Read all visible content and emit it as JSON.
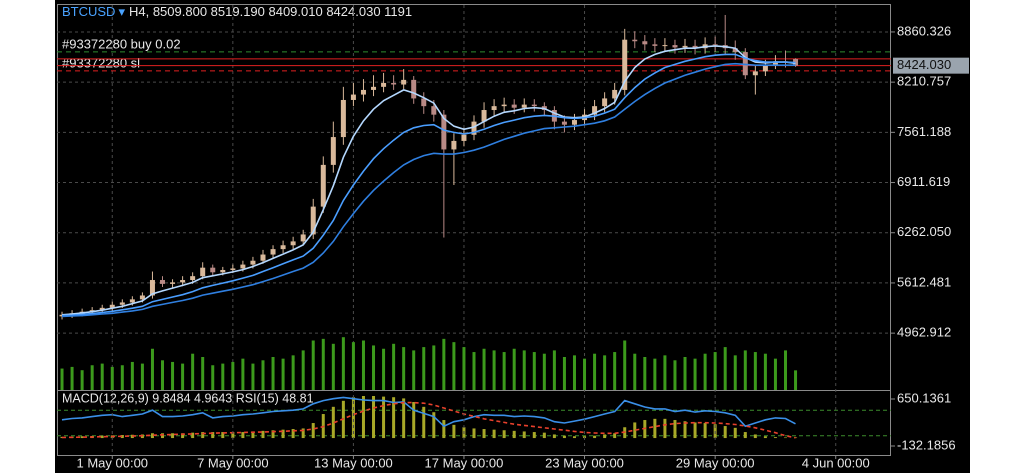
{
  "chart_data": {
    "type": "candlestick",
    "symbol": "BTCUSD",
    "header": "H4, 8509.800 8519.190 8409.010 8424.030 1191",
    "xlim": [
      -0.5,
      82.5
    ],
    "xticks": [
      {
        "value": 5,
        "label": "1 May 00:00"
      },
      {
        "value": 17,
        "label": "7 May 00:00"
      },
      {
        "value": 29,
        "label": "13 May 00:00"
      },
      {
        "value": 40,
        "label": "17 May 00:00"
      },
      {
        "value": 52,
        "label": "23 May 00:00"
      },
      {
        "value": 65,
        "label": "29 May 00:00"
      },
      {
        "value": 77,
        "label": "4 Jun 00:00"
      }
    ],
    "ylim": [
      4227,
      9209
    ],
    "yticks": [
      8860.326,
      8210.757,
      7561.188,
      6911.619,
      {
        "value": 6262.05,
        "label": "6262.050"
      },
      5612.481,
      4962.912
    ],
    "grid": true,
    "up_color": "#d9b99b",
    "down_color": "#b98a86",
    "open": [
      5180,
      5200,
      5220,
      5240,
      5260,
      5290,
      5330,
      5360,
      5400,
      5450,
      5650,
      5600,
      5620,
      5650,
      5700,
      5810,
      5750,
      5780,
      5800,
      5850,
      5900,
      5980,
      6050,
      6100,
      6150,
      6240,
      6600,
      7140,
      7500,
      7980,
      8050,
      8110,
      8150,
      8200,
      8180,
      8240,
      8000,
      7900,
      7790,
      7340,
      7450,
      7530,
      7700,
      7850,
      7900,
      7920,
      7880,
      7920,
      7900,
      7850,
      7700,
      7660,
      7720,
      7790,
      7900,
      8000,
      8110,
      8760,
      8740,
      8700,
      8680,
      8690,
      8660,
      8680,
      8650,
      8700,
      8690,
      8650,
      8600,
      8300,
      8350,
      8430,
      8480,
      8509.8
    ],
    "high": [
      5240,
      5260,
      5280,
      5300,
      5330,
      5370,
      5400,
      5440,
      5490,
      5760,
      5700,
      5660,
      5700,
      5750,
      5880,
      5850,
      5820,
      5850,
      5900,
      5950,
      6040,
      6100,
      6160,
      6210,
      6300,
      6700,
      7250,
      7700,
      8150,
      8200,
      8250,
      8300,
      8330,
      8300,
      8380,
      8290,
      8080,
      7980,
      7850,
      7550,
      7620,
      7780,
      7950,
      7990,
      8010,
      7990,
      8000,
      7990,
      7950,
      7900,
      7780,
      7800,
      7860,
      7980,
      8080,
      8200,
      8900,
      8870,
      8820,
      8780,
      8780,
      8760,
      8770,
      8760,
      8790,
      8800,
      9080,
      8750,
      8650,
      8420,
      8500,
      8560,
      8620,
      8519.19
    ],
    "low": [
      5140,
      5160,
      5180,
      5200,
      5220,
      5250,
      5290,
      5320,
      5360,
      5410,
      5560,
      5550,
      5570,
      5600,
      5660,
      5700,
      5710,
      5740,
      5760,
      5800,
      5860,
      5930,
      6000,
      6050,
      6100,
      6180,
      6520,
      7040,
      7400,
      7900,
      7960,
      8030,
      8080,
      8110,
      8120,
      7930,
      7800,
      7700,
      6200,
      6880,
      7380,
      7460,
      7620,
      7780,
      7830,
      7800,
      7820,
      7830,
      7780,
      7600,
      7560,
      7590,
      7650,
      7720,
      7820,
      7920,
      8040,
      8650,
      8620,
      8600,
      8600,
      8580,
      8590,
      8570,
      8580,
      8600,
      8560,
      8500,
      8250,
      8050,
      8290,
      8380,
      8400,
      8409.01
    ],
    "close": [
      5200,
      5220,
      5240,
      5260,
      5290,
      5330,
      5360,
      5400,
      5450,
      5650,
      5600,
      5620,
      5650,
      5700,
      5810,
      5750,
      5780,
      5800,
      5850,
      5900,
      5980,
      6050,
      6100,
      6150,
      6240,
      6600,
      7140,
      7500,
      7980,
      8050,
      8110,
      8150,
      8200,
      8180,
      8240,
      8000,
      7900,
      7790,
      7340,
      7450,
      7530,
      7700,
      7850,
      7900,
      7920,
      7880,
      7920,
      7900,
      7850,
      7700,
      7660,
      7720,
      7790,
      7900,
      8000,
      8110,
      8760,
      8740,
      8700,
      8680,
      8690,
      8660,
      8680,
      8650,
      8700,
      8690,
      8650,
      8600,
      8300,
      8350,
      8430,
      8480,
      8470,
      8424.03
    ],
    "series": [
      {
        "color": "#b4d8ff",
        "values": [
          5200,
          5210,
          5225,
          5240,
          5260,
          5285,
          5310,
          5345,
          5380,
          5470,
          5510,
          5545,
          5580,
          5620,
          5680,
          5705,
          5730,
          5755,
          5785,
          5825,
          5875,
          5930,
          5985,
          6040,
          6105,
          6270,
          6560,
          6870,
          7240,
          7510,
          7710,
          7860,
          7970,
          8040,
          8110,
          8070,
          8010,
          7940,
          7740,
          7640,
          7600,
          7630,
          7700,
          7770,
          7820,
          7840,
          7870,
          7880,
          7870,
          7810,
          7760,
          7750,
          7760,
          7810,
          7870,
          7950,
          8220,
          8400,
          8510,
          8570,
          8610,
          8630,
          8650,
          8650,
          8670,
          8680,
          8670,
          8650,
          8530,
          8470,
          8460,
          8470,
          8470,
          8455
        ]
      },
      {
        "color": "#4a9eff",
        "values": [
          5190,
          5195,
          5205,
          5215,
          5230,
          5245,
          5265,
          5285,
          5310,
          5370,
          5400,
          5430,
          5460,
          5500,
          5550,
          5580,
          5610,
          5640,
          5675,
          5710,
          5760,
          5810,
          5860,
          5910,
          5960,
          6060,
          6230,
          6420,
          6680,
          6880,
          7060,
          7220,
          7350,
          7460,
          7560,
          7620,
          7650,
          7660,
          7590,
          7560,
          7540,
          7560,
          7600,
          7650,
          7690,
          7720,
          7750,
          7770,
          7780,
          7770,
          7750,
          7740,
          7750,
          7770,
          7810,
          7860,
          8010,
          8140,
          8250,
          8330,
          8400,
          8440,
          8480,
          8510,
          8540,
          8560,
          8570,
          8570,
          8520,
          8490,
          8470,
          8470,
          8470,
          8465
        ]
      },
      {
        "color": "#2f7fe0",
        "values": [
          5180,
          5185,
          5190,
          5200,
          5210,
          5220,
          5235,
          5250,
          5270,
          5310,
          5335,
          5360,
          5385,
          5415,
          5455,
          5480,
          5505,
          5530,
          5560,
          5590,
          5630,
          5670,
          5715,
          5760,
          5805,
          5880,
          6000,
          6150,
          6340,
          6510,
          6670,
          6810,
          6930,
          7040,
          7140,
          7210,
          7260,
          7290,
          7280,
          7280,
          7300,
          7330,
          7370,
          7420,
          7470,
          7510,
          7550,
          7580,
          7610,
          7620,
          7630,
          7640,
          7660,
          7680,
          7710,
          7760,
          7860,
          7960,
          8050,
          8130,
          8200,
          8250,
          8300,
          8340,
          8380,
          8410,
          8440,
          8450,
          8440,
          8430,
          8430,
          8430,
          8430,
          8430
        ]
      }
    ],
    "volume": {
      "color": "#3c9a1c",
      "values": [
        1300,
        1400,
        1200,
        1500,
        1600,
        1400,
        1500,
        1700,
        1600,
        2500,
        1800,
        1700,
        1600,
        2200,
        2000,
        1500,
        1600,
        1700,
        1900,
        1600,
        1800,
        2000,
        1900,
        2100,
        2400,
        3000,
        3100,
        2800,
        3200,
        2900,
        3000,
        2700,
        2500,
        2800,
        2600,
        2400,
        2600,
        2700,
        3100,
        2900,
        2600,
        2300,
        2500,
        2400,
        2300,
        2500,
        2400,
        2300,
        2200,
        2400,
        2000,
        2100,
        1900,
        2200,
        2100,
        2300,
        3000,
        2200,
        2000,
        1900,
        2100,
        1800,
        2000,
        1900,
        2200,
        2300,
        2600,
        2100,
        2400,
        2300,
        2200,
        1900,
        2400,
        1191
      ]
    },
    "bid": {
      "value": 8424.03,
      "label": "8424.030",
      "color": "#9aa4ae"
    },
    "ask": {
      "value": 8512,
      "color": "#e02020"
    },
    "orders": [
      {
        "label": "#93372280 buy 0.02",
        "price": 8602,
        "color": "#2f8a2f",
        "dashed": true
      },
      {
        "label": "#93372280 sl",
        "price": 8357,
        "color": "#e02020",
        "dashed": true
      }
    ],
    "indicator": {
      "title": "MACD(12,26,9) 9.8484 4.9643 RSI(15) 48.81",
      "y2lim": [
        -282,
        783.3
      ],
      "y2ticks": [
        650.1361,
        -132.1856
      ],
      "macd": {
        "color": "#a8a828",
        "values": [
          20,
          25,
          30,
          35,
          40,
          45,
          50,
          55,
          60,
          80,
          80,
          80,
          80,
          90,
          100,
          100,
          100,
          100,
          100,
          110,
          120,
          130,
          140,
          150,
          160,
          250,
          400,
          520,
          620,
          680,
          700,
          700,
          690,
          680,
          660,
          600,
          520,
          430,
          300,
          220,
          180,
          160,
          150,
          140,
          130,
          120,
          110,
          100,
          90,
          60,
          40,
          30,
          30,
          40,
          60,
          80,
          180,
          260,
          300,
          320,
          320,
          300,
          280,
          260,
          250,
          230,
          200,
          170,
          100,
          60,
          30,
          15,
          10,
          9.8484
        ]
      },
      "signal": {
        "color": "#e8402c",
        "values": [
          10,
          12,
          15,
          18,
          22,
          26,
          30,
          35,
          40,
          48,
          55,
          60,
          65,
          70,
          76,
          81,
          86,
          90,
          93,
          97,
          101,
          107,
          113,
          120,
          128,
          150,
          190,
          250,
          320,
          390,
          450,
          500,
          540,
          570,
          590,
          590,
          580,
          550,
          500,
          450,
          400,
          360,
          320,
          290,
          260,
          230,
          210,
          190,
          170,
          150,
          130,
          110,
          95,
          85,
          80,
          80,
          100,
          130,
          160,
          190,
          220,
          240,
          250,
          255,
          255,
          250,
          240,
          225,
          200,
          170,
          130,
          90,
          40,
          4.9643
        ]
      },
      "rsi": {
        "color": "#3a8fe8",
        "lim": [
          0,
          100
        ],
        "levels": [
          30,
          70
        ],
        "level_color": "#3c8c2c",
        "values": [
          55,
          57,
          58,
          60,
          62,
          63,
          60,
          62,
          64,
          70,
          60,
          60,
          61,
          63,
          66,
          58,
          60,
          61,
          63,
          64,
          66,
          68,
          69,
          70,
          72,
          80,
          85,
          88,
          90,
          88,
          86,
          85,
          85,
          82,
          83,
          70,
          65,
          60,
          45,
          52,
          55,
          60,
          63,
          62,
          62,
          60,
          61,
          60,
          58,
          52,
          50,
          53,
          56,
          60,
          64,
          68,
          85,
          80,
          75,
          72,
          72,
          68,
          70,
          67,
          69,
          68,
          66,
          62,
          45,
          50,
          55,
          58,
          57,
          48.81
        ]
      }
    }
  }
}
